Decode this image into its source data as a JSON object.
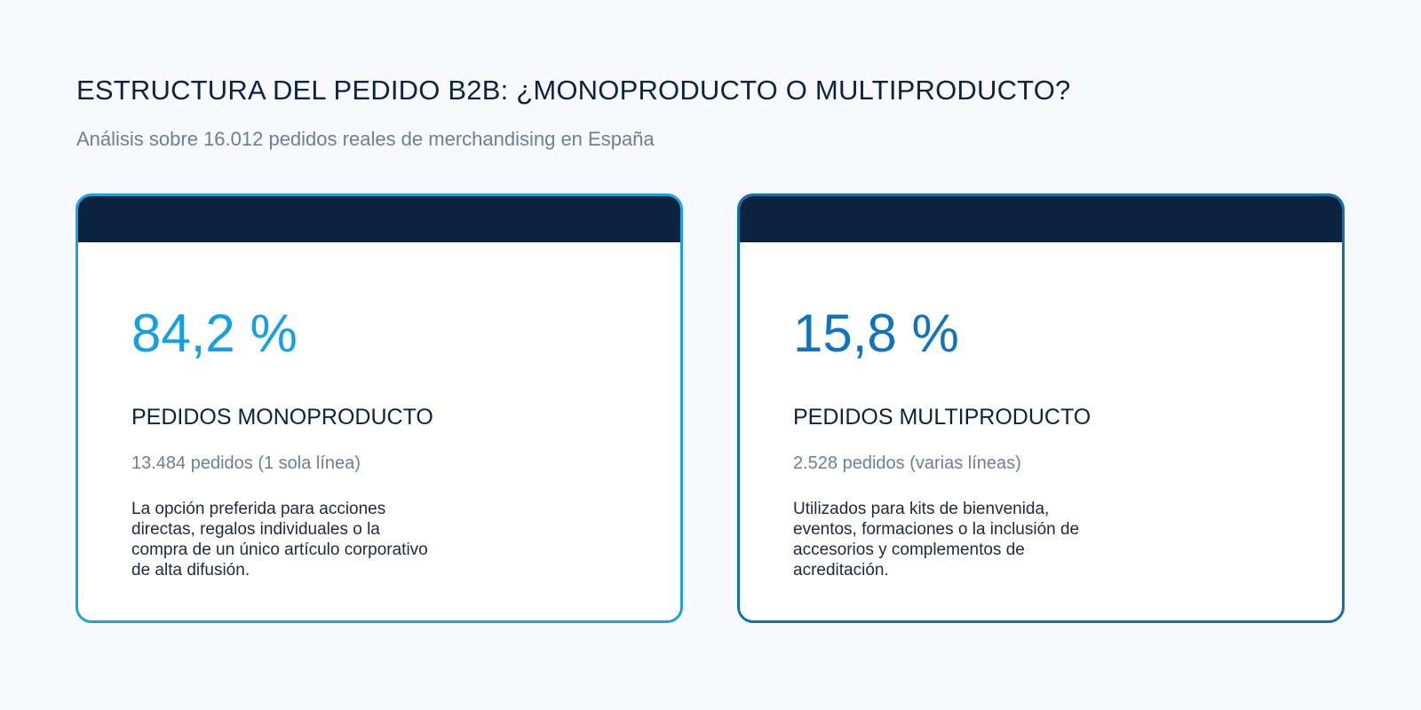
{
  "header": {
    "title": "ESTRUCTURA DEL PEDIDO B2B: ¿MONOPRODUCTO O MULTIPRODUCTO?",
    "subtitle": "Análisis sobre 16.012 pedidos reales de merchandising en España"
  },
  "cards": [
    {
      "percentage": "84,2 %",
      "label": "PEDIDOS MONOPRODUCTO",
      "count": "13.484 pedidos (1 sola línea)",
      "description": "La opción preferida para acciones directas, regalos individuales o la compra de un único artículo corporativo de alta difusión.",
      "accent_color": "#1aa3e3"
    },
    {
      "percentage": "15,8 %",
      "label": "PEDIDOS MULTIPRODUCTO",
      "count": "2.528 pedidos (varias líneas)",
      "description": "Utilizados para kits de bienvenida, eventos, formaciones o la inclusión de accesorios y complementos de acreditación.",
      "accent_color": "#1470ad"
    }
  ],
  "colors": {
    "background": "#f7f9fc",
    "header_bar": "#0c2340",
    "title_text": "#0c2340",
    "muted_text": "#6b7f95"
  }
}
